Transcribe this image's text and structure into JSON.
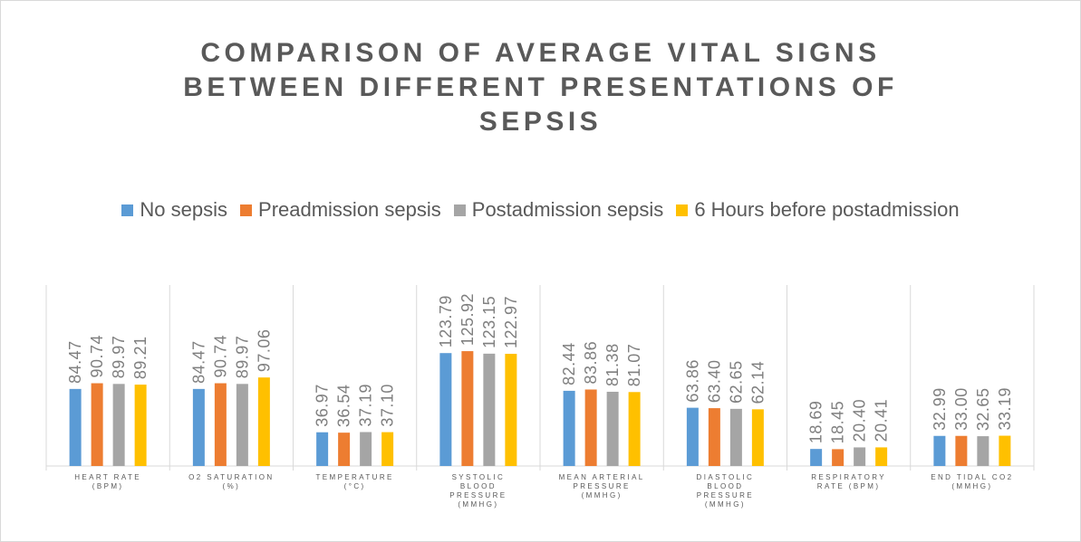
{
  "chart_data": {
    "type": "bar",
    "title_lines": [
      "COMPARISON OF AVERAGE VITAL SIGNS",
      "BETWEEN DIFFERENT PRESENTATIONS OF",
      "SEPSIS"
    ],
    "categories": [
      [
        "HEART RATE",
        "(BPM)"
      ],
      [
        "O2 SATURATION",
        "(%)"
      ],
      [
        "TEMPERATURE",
        "(°C)"
      ],
      [
        "SYSTOLIC",
        "BLOOD",
        "PRESSURE",
        "(MMHG)"
      ],
      [
        "MEAN ARTERIAL",
        "PRESSURE",
        "(MMHG)"
      ],
      [
        "DIASTOLIC",
        "BLOOD",
        "PRESSURE",
        "(MMHG)"
      ],
      [
        "RESPIRATORY",
        "RATE (BPM)"
      ],
      [
        "END TIDAL CO2",
        "(MMHG)"
      ]
    ],
    "series": [
      {
        "name": "No sepsis",
        "color": "#5b9bd5",
        "values": [
          84.47,
          84.47,
          36.97,
          123.79,
          82.44,
          63.86,
          18.69,
          32.99
        ]
      },
      {
        "name": "Preadmission sepsis",
        "color": "#ed7d31",
        "values": [
          90.74,
          90.74,
          36.54,
          125.92,
          83.86,
          63.4,
          18.45,
          33.0
        ]
      },
      {
        "name": "Postadmission sepsis",
        "color": "#a5a5a5",
        "values": [
          89.97,
          89.97,
          37.19,
          123.15,
          81.38,
          62.65,
          20.4,
          32.65
        ]
      },
      {
        "name": "6 Hours before postadmission",
        "color": "#ffc000",
        "values": [
          89.21,
          97.06,
          37.1,
          122.97,
          81.07,
          62.14,
          20.41,
          33.19
        ]
      }
    ],
    "ylim": [
      0,
      240
    ],
    "legend_position": "top",
    "gridlines": "vertical category separators"
  }
}
